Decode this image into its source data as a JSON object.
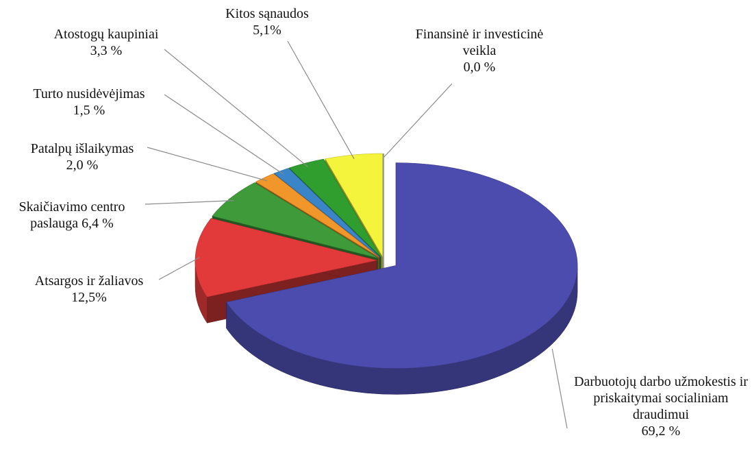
{
  "chart_data": {
    "type": "pie",
    "categories": [
      "Darbuotojų darbo užmokestis ir priskaitymai socialiniam draudimui",
      "Atsargos ir žaliavos",
      "Skaičiavimo centro paslauga",
      "Patalpų išlaikymas",
      "Turto nusidėvėjimas",
      "Atostogų kaupiniai",
      "Kitos sąnaudos",
      "Finansinė ir investicinė veikla"
    ],
    "values": [
      69.2,
      12.5,
      6.4,
      2.0,
      1.5,
      3.3,
      5.1,
      0.0
    ],
    "value_labels": [
      "69,2 %",
      "12,5%",
      "6,4 %",
      "2,0 %",
      "1,5 %",
      "3,3 %",
      "5,1%",
      "0,0 %"
    ],
    "colors": [
      "#4c4cae",
      "#e23a3a",
      "#3f9a3a",
      "#f0962a",
      "#3a84c8",
      "#2f9e2f",
      "#f4f43c",
      "#3a6a3a"
    ]
  }
}
